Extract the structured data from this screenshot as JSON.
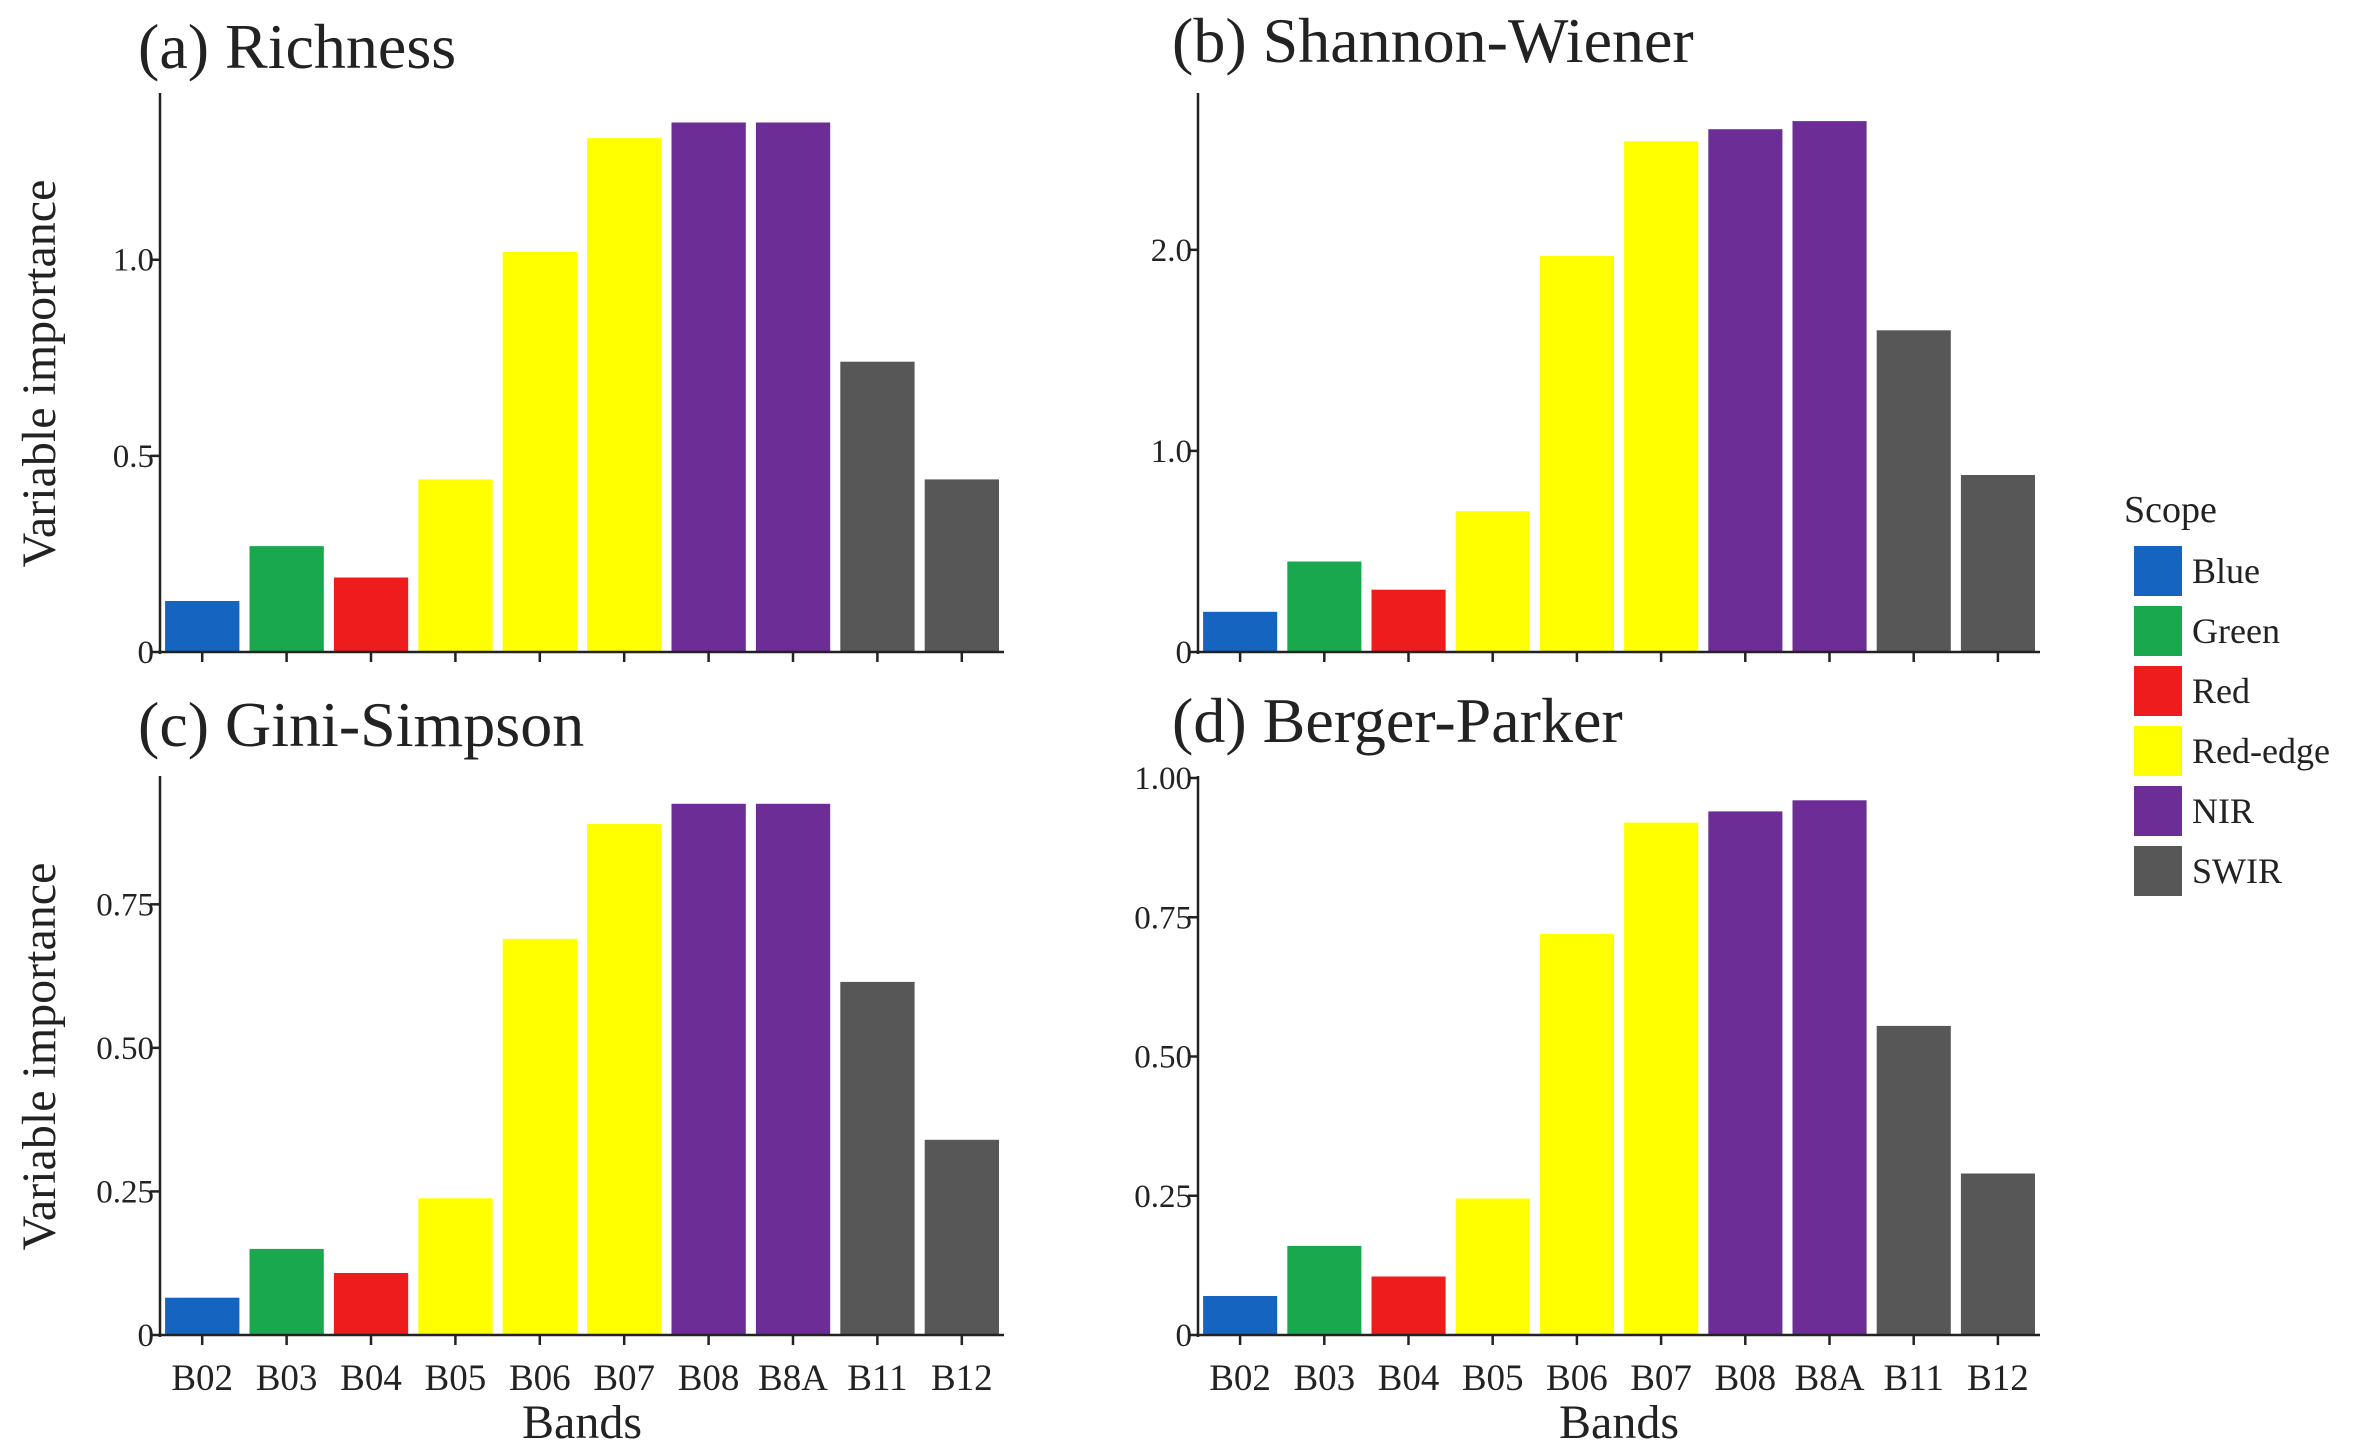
{
  "figure": {
    "legend": {
      "title": "Scope",
      "items": [
        {
          "label": "Blue",
          "color": "#1565c0"
        },
        {
          "label": "Green",
          "color": "#1aa84f"
        },
        {
          "label": "Red",
          "color": "#ee1c1c"
        },
        {
          "label": "Red-edge",
          "color": "#ffff00"
        },
        {
          "label": "NIR",
          "color": "#6c2d96"
        },
        {
          "label": "SWIR",
          "color": "#575757"
        }
      ]
    }
  },
  "chart_data": [
    {
      "type": "bar",
      "title": "(a) Richness",
      "ylabel": "Variable importance",
      "xlabel": "",
      "categories": [
        "B02",
        "B03",
        "B04",
        "B05",
        "B06",
        "B07",
        "B08",
        "B8A",
        "B11",
        "B12"
      ],
      "scope": [
        "Blue",
        "Green",
        "Red",
        "Red-edge",
        "Red-edge",
        "Red-edge",
        "NIR",
        "NIR",
        "SWIR",
        "SWIR"
      ],
      "values": [
        0.13,
        0.27,
        0.19,
        0.44,
        1.02,
        1.31,
        1.35,
        1.35,
        0.74,
        0.44
      ],
      "ylim": [
        0,
        1.42
      ],
      "yticks": [
        0,
        0.5,
        1.0
      ],
      "ytick_labels": [
        "0",
        "0.5",
        "1.0"
      ],
      "legend": "right"
    },
    {
      "type": "bar",
      "title": "(b) Shannon-Wiener",
      "ylabel": "",
      "xlabel": "",
      "categories": [
        "B02",
        "B03",
        "B04",
        "B05",
        "B06",
        "B07",
        "B08",
        "B8A",
        "B11",
        "B12"
      ],
      "scope": [
        "Blue",
        "Green",
        "Red",
        "Red-edge",
        "Red-edge",
        "Red-edge",
        "NIR",
        "NIR",
        "SWIR",
        "SWIR"
      ],
      "values": [
        0.2,
        0.45,
        0.31,
        0.7,
        1.97,
        2.54,
        2.6,
        2.64,
        1.6,
        0.88
      ],
      "ylim": [
        0,
        2.77
      ],
      "yticks": [
        0,
        1.0,
        2.0
      ],
      "ytick_labels": [
        "0",
        "1.0",
        "2.0"
      ],
      "legend": "right"
    },
    {
      "type": "bar",
      "title": "(c) Gini-Simpson",
      "ylabel": "Variable importance",
      "xlabel": "Bands",
      "categories": [
        "B02",
        "B03",
        "B04",
        "B05",
        "B06",
        "B07",
        "B08",
        "B8A",
        "B11",
        "B12"
      ],
      "scope": [
        "Blue",
        "Green",
        "Red",
        "Red-edge",
        "Red-edge",
        "Red-edge",
        "NIR",
        "NIR",
        "SWIR",
        "SWIR"
      ],
      "values": [
        0.065,
        0.15,
        0.108,
        0.238,
        0.69,
        0.89,
        0.925,
        0.925,
        0.615,
        0.34
      ],
      "ylim": [
        0,
        0.97
      ],
      "yticks": [
        0,
        0.25,
        0.5,
        0.75
      ],
      "ytick_labels": [
        "0",
        "0.25",
        "0.50",
        "0.75"
      ],
      "legend": "right"
    },
    {
      "type": "bar",
      "title": "(d) Berger-Parker",
      "ylabel": "",
      "xlabel": "Bands",
      "categories": [
        "B02",
        "B03",
        "B04",
        "B05",
        "B06",
        "B07",
        "B08",
        "B8A",
        "B11",
        "B12"
      ],
      "scope": [
        "Blue",
        "Green",
        "Red",
        "Red-edge",
        "Red-edge",
        "Red-edge",
        "NIR",
        "NIR",
        "SWIR",
        "SWIR"
      ],
      "values": [
        0.07,
        0.16,
        0.105,
        0.245,
        0.72,
        0.92,
        0.94,
        0.96,
        0.555,
        0.29
      ],
      "ylim": [
        0,
        1.0
      ],
      "yticks": [
        0,
        0.25,
        0.5,
        0.75,
        1.0
      ],
      "ytick_labels": [
        "0",
        "0.25",
        "0.50",
        "0.75",
        "1.00"
      ],
      "legend": "right"
    }
  ]
}
